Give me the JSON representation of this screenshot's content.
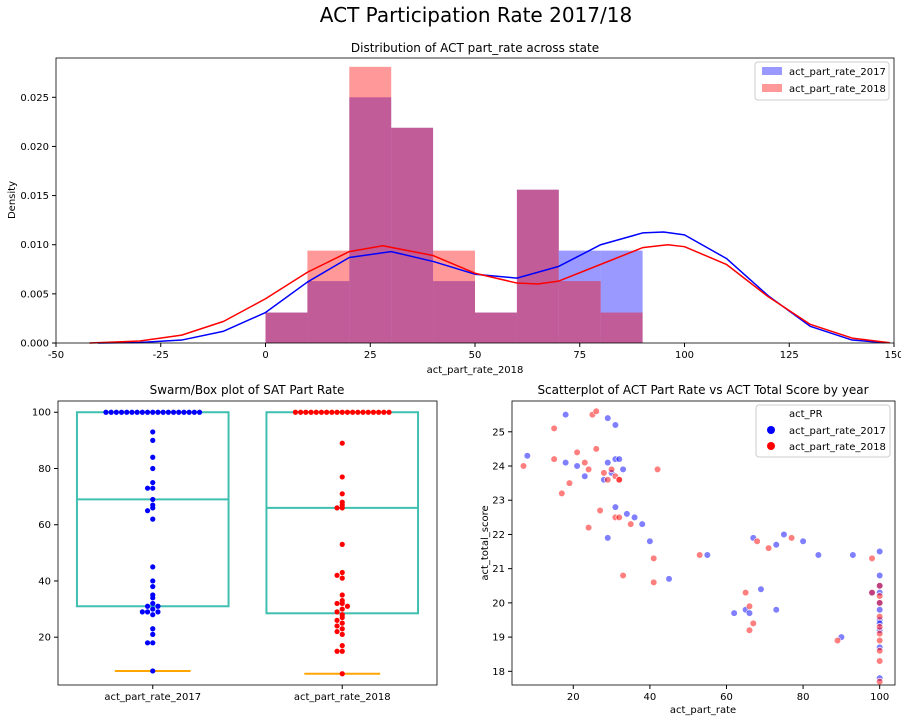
{
  "figure": {
    "suptitle": "ACT Participation Rate 2017/18"
  },
  "colors": {
    "c2017": "#0000ff",
    "c2018": "#ff0000",
    "overlap": "#c25a95",
    "box": "#3fbfb0",
    "whisker": "#ffa500"
  },
  "chart_data": [
    {
      "type": "histogram",
      "title": "Distribution of ACT part_rate across state",
      "xlabel": "act_part_rate_2018",
      "ylabel": "Density",
      "xlim": [
        -50,
        150
      ],
      "ylim": [
        0,
        0.029
      ],
      "xticks": [
        -50,
        -25,
        0,
        25,
        50,
        75,
        100,
        125,
        150
      ],
      "yticks": [
        0.0,
        0.005,
        0.01,
        0.015,
        0.02,
        0.025
      ],
      "ytick_labels": [
        "0.000",
        "0.005",
        "0.010",
        "0.015",
        "0.020",
        "0.025"
      ],
      "bin_edges": [
        0,
        10,
        20,
        30,
        40,
        50,
        60,
        70,
        80,
        90
      ],
      "legend_position": "upper right",
      "series": [
        {
          "name": "act_part_rate_2017",
          "densities": [
            0.0031,
            0.0063,
            0.025,
            0.0219,
            0.0063,
            0.0031,
            0.0156,
            0.0094,
            0.0094
          ],
          "kde_x": [
            -40,
            -30,
            -20,
            -10,
            0,
            10,
            20,
            30,
            40,
            50,
            60,
            70,
            80,
            90,
            95,
            100,
            110,
            120,
            130,
            140,
            148
          ],
          "kde_y": [
            0.0,
            5e-05,
            0.0003,
            0.0012,
            0.0031,
            0.0062,
            0.0087,
            0.0093,
            0.0083,
            0.007,
            0.0066,
            0.0078,
            0.01,
            0.0112,
            0.0113,
            0.011,
            0.0086,
            0.0048,
            0.0017,
            0.0003,
            3e-05
          ]
        },
        {
          "name": "act_part_rate_2018",
          "densities": [
            0.0031,
            0.0094,
            0.0281,
            0.0219,
            0.0094,
            0.0031,
            0.0156,
            0.0063,
            0.0031
          ],
          "kde_x": [
            -42,
            -30,
            -20,
            -10,
            0,
            10,
            20,
            28,
            40,
            50,
            60,
            65,
            70,
            80,
            90,
            96,
            100,
            110,
            120,
            130,
            140,
            149
          ],
          "kde_y": [
            0.0,
            0.0002,
            0.0008,
            0.0022,
            0.0045,
            0.0072,
            0.0093,
            0.0099,
            0.0089,
            0.0071,
            0.0061,
            0.006,
            0.0063,
            0.008,
            0.0097,
            0.01,
            0.0098,
            0.008,
            0.0047,
            0.0019,
            0.0005,
            3e-05
          ]
        }
      ]
    },
    {
      "type": "box",
      "title": "Swarm/Box plot of SAT Part Rate",
      "categories": [
        "act_part_rate_2017",
        "act_part_rate_2018"
      ],
      "ylim": [
        3,
        104
      ],
      "yticks": [
        20,
        40,
        60,
        80,
        100
      ],
      "boxes": [
        {
          "name": "act_part_rate_2017",
          "min": 8,
          "q1": 31,
          "median": 69,
          "q3": 100,
          "max": 100
        },
        {
          "name": "act_part_rate_2018",
          "min": 7,
          "q1": 28.5,
          "median": 66,
          "q3": 100,
          "max": 100
        }
      ],
      "swarm": [
        {
          "name": "act_part_rate_2017",
          "values": [
            100,
            100,
            100,
            100,
            100,
            100,
            100,
            100,
            100,
            100,
            100,
            100,
            100,
            100,
            100,
            100,
            100,
            100,
            100,
            100,
            100,
            100,
            100,
            100,
            100,
            100,
            100,
            100,
            100,
            100,
            100,
            100,
            100,
            100,
            100,
            100,
            100,
            100,
            100,
            100,
            100,
            100,
            100,
            100,
            100,
            100,
            100,
            100,
            100,
            100,
            100,
            100,
            100,
            100,
            100,
            100,
            100,
            100,
            100,
            100,
            100,
            100,
            100,
            100,
            100,
            100,
            100,
            100,
            100,
            100,
            100,
            100,
            100,
            100,
            100,
            100,
            100,
            100,
            100,
            100,
            100,
            100,
            100,
            100,
            100,
            100,
            100,
            100,
            100,
            100,
            100,
            100,
            100,
            100,
            100,
            100,
            100,
            100,
            100,
            100
          ]
        }
      ]
    },
    {
      "type": "scatter",
      "title": "Scatterplot of ACT Part Rate vs ACT Total Score by year",
      "xlabel": "act_part_rate",
      "ylabel": "act_total_score",
      "xlim": [
        4,
        104
      ],
      "ylim": [
        17.6,
        25.9
      ],
      "xticks": [
        20,
        40,
        60,
        80,
        100
      ],
      "yticks": [
        18,
        19,
        20,
        21,
        22,
        23,
        24,
        25
      ],
      "legend_title": "act_PR",
      "legend_position": "upper right",
      "series": [
        {
          "name": "act_part_rate_2017",
          "points": [
            [
              8,
              24.3
            ],
            [
              18,
              25.5
            ],
            [
              18,
              24.1
            ],
            [
              21,
              24.0
            ],
            [
              23,
              23.7
            ],
            [
              28,
              23.6
            ],
            [
              29,
              25.4
            ],
            [
              29,
              24.1
            ],
            [
              30,
              23.8
            ],
            [
              31,
              25.2
            ],
            [
              31,
              24.2
            ],
            [
              32,
              24.2
            ],
            [
              31,
              22.8
            ],
            [
              33,
              23.9
            ],
            [
              34,
              22.6
            ],
            [
              36,
              22.5
            ],
            [
              38,
              22.3
            ],
            [
              40,
              21.8
            ],
            [
              45,
              20.7
            ],
            [
              55,
              21.4
            ],
            [
              62,
              19.7
            ],
            [
              65,
              19.8
            ],
            [
              66,
              19.7
            ],
            [
              67,
              21.9
            ],
            [
              69,
              20.4
            ],
            [
              73,
              21.7
            ],
            [
              73,
              19.8
            ],
            [
              75,
              22.0
            ],
            [
              80,
              21.8
            ],
            [
              84,
              21.4
            ],
            [
              90,
              19.0
            ],
            [
              93,
              21.4
            ],
            [
              100,
              21.5
            ],
            [
              100,
              20.8
            ],
            [
              100,
              20.5
            ],
            [
              100,
              20.3
            ],
            [
              100,
              20.0
            ],
            [
              100,
              19.8
            ],
            [
              100,
              19.5
            ],
            [
              100,
              19.4
            ],
            [
              100,
              19.2
            ],
            [
              100,
              18.7
            ],
            [
              100,
              17.8
            ],
            [
              98,
              20.3
            ],
            [
              29,
              21.9
            ]
          ]
        },
        {
          "name": "act_part_rate_2018",
          "points": [
            [
              7,
              24.0
            ],
            [
              15,
              25.1
            ],
            [
              15,
              24.2
            ],
            [
              17,
              23.2
            ],
            [
              19,
              23.5
            ],
            [
              21,
              24.4
            ],
            [
              23,
              24.1
            ],
            [
              24,
              23.9
            ],
            [
              24,
              22.2
            ],
            [
              25,
              25.5
            ],
            [
              26,
              25.6
            ],
            [
              26,
              24.5
            ],
            [
              27,
              22.7
            ],
            [
              28,
              23.8
            ],
            [
              29,
              23.6
            ],
            [
              30,
              23.9
            ],
            [
              31,
              23.7
            ],
            [
              31,
              22.5
            ],
            [
              32,
              22.5
            ],
            [
              32,
              23.6
            ],
            [
              32,
              23.6
            ],
            [
              33,
              20.8
            ],
            [
              35,
              22.3
            ],
            [
              41,
              20.6
            ],
            [
              41,
              21.3
            ],
            [
              42,
              23.9
            ],
            [
              53,
              21.4
            ],
            [
              65,
              20.3
            ],
            [
              66,
              19.9
            ],
            [
              66,
              19.2
            ],
            [
              67,
              19.4
            ],
            [
              68,
              21.8
            ],
            [
              71,
              21.6
            ],
            [
              77,
              21.9
            ],
            [
              89,
              18.9
            ],
            [
              98,
              21.3
            ],
            [
              98,
              20.3
            ],
            [
              100,
              20.5
            ],
            [
              100,
              20.2
            ],
            [
              100,
              20.0
            ],
            [
              100,
              19.6
            ],
            [
              100,
              19.3
            ],
            [
              100,
              19.1
            ],
            [
              100,
              18.6
            ],
            [
              100,
              18.3
            ],
            [
              100,
              17.7
            ],
            [
              100,
              18.9
            ]
          ]
        }
      ]
    }
  ]
}
